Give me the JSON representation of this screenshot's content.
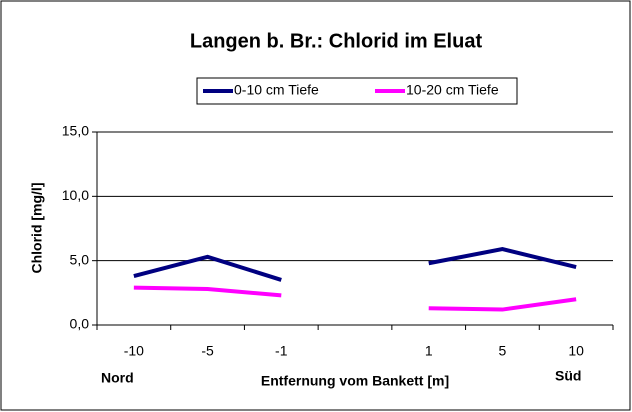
{
  "chart_data": {
    "type": "line",
    "title": "Langen b. Br.: Chlorid im Eluat",
    "x_label": "Entfernung vom Bankett [m]",
    "y_label": "Chlorid [mg/l]",
    "annotations": [
      "Nord",
      "Süd"
    ],
    "categories": [
      "-10",
      "-5",
      "-1",
      null,
      "1",
      "5",
      "10"
    ],
    "series": [
      {
        "name": "0-10 cm Tiefe",
        "color": "#000080",
        "values": [
          3.8,
          5.3,
          3.5,
          null,
          4.8,
          5.9,
          4.5
        ]
      },
      {
        "name": "10-20 cm Tiefe",
        "color": "#ff00ff",
        "values": [
          2.9,
          2.8,
          2.3,
          null,
          1.3,
          1.2,
          2.0
        ]
      }
    ],
    "ylim": [
      0,
      15
    ],
    "yticks": [
      {
        "value": 0,
        "label": "0,0"
      },
      {
        "value": 5,
        "label": "5,0"
      },
      {
        "value": 10,
        "label": "10,0"
      },
      {
        "value": 15,
        "label": "15,0"
      }
    ],
    "grid": true,
    "legend": "top"
  }
}
